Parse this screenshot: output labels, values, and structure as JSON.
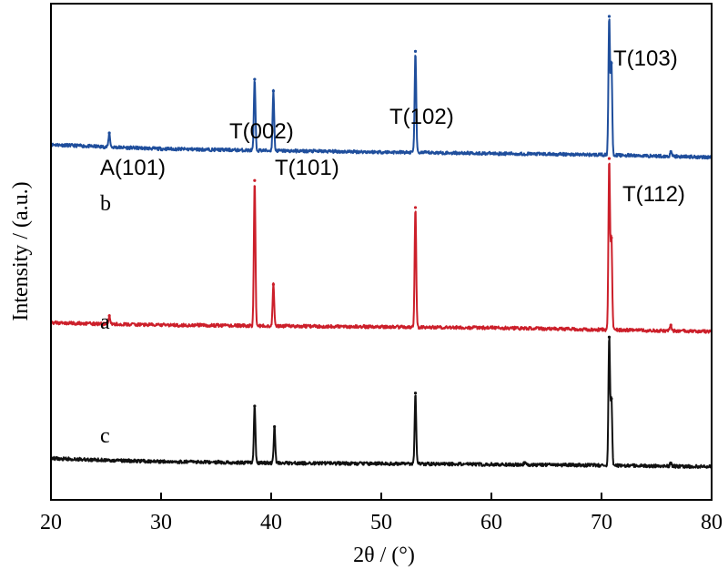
{
  "chart_data": {
    "type": "line",
    "xlabel": "2θ / (°)",
    "ylabel": "Intensity / (a.u.)",
    "xlim": [
      20,
      80
    ],
    "xticks": [
      "20",
      "30",
      "40",
      "50",
      "60",
      "70",
      "80"
    ],
    "ylim": [
      0,
      100
    ],
    "grid": false,
    "legend": "none",
    "series": [
      {
        "name": "b",
        "color": "#1f4e9c",
        "baseline": [
          [
            20,
            72.5
          ],
          [
            25,
            72.0
          ],
          [
            30,
            71.6
          ],
          [
            40,
            71.2
          ],
          [
            60,
            70.6
          ],
          [
            70,
            70.3
          ],
          [
            80,
            69.8
          ]
        ],
        "peaks": [
          [
            25.3,
            75.0
          ],
          [
            38.5,
            86.5
          ],
          [
            40.2,
            84.0
          ],
          [
            53.1,
            92.5
          ],
          [
            70.7,
            100.0
          ],
          [
            70.9,
            90.0
          ],
          [
            76.3,
            71.0
          ]
        ]
      },
      {
        "name": "a",
        "color": "#cc1f2a",
        "baseline": [
          [
            20,
            34.3
          ],
          [
            25,
            34.0
          ],
          [
            30,
            33.8
          ],
          [
            40,
            33.6
          ],
          [
            60,
            33.2
          ],
          [
            70,
            32.8
          ],
          [
            80,
            32.4
          ]
        ],
        "peaks": [
          [
            25.3,
            35.8
          ],
          [
            38.5,
            64.8
          ],
          [
            40.2,
            42.5
          ],
          [
            53.1,
            59.0
          ],
          [
            70.7,
            69.5
          ],
          [
            70.9,
            52.5
          ],
          [
            76.3,
            33.8
          ]
        ]
      },
      {
        "name": "c",
        "color": "#111111",
        "baseline": [
          [
            20,
            5.2
          ],
          [
            25,
            4.8
          ],
          [
            30,
            4.5
          ],
          [
            40,
            4.2
          ],
          [
            60,
            3.9
          ],
          [
            70,
            3.7
          ],
          [
            80,
            3.4
          ]
        ],
        "peaks": [
          [
            35.2,
            4.6
          ],
          [
            38.5,
            16.4
          ],
          [
            40.3,
            12.0
          ],
          [
            53.1,
            19.2
          ],
          [
            63.0,
            4.3
          ],
          [
            70.7,
            31.2
          ],
          [
            70.9,
            18.0
          ],
          [
            76.3,
            4.2
          ]
        ]
      }
    ],
    "annotations": [
      "A(101)",
      "T(002)",
      "T(101)",
      "T(102)",
      "T(103)",
      "T(112)"
    ]
  }
}
